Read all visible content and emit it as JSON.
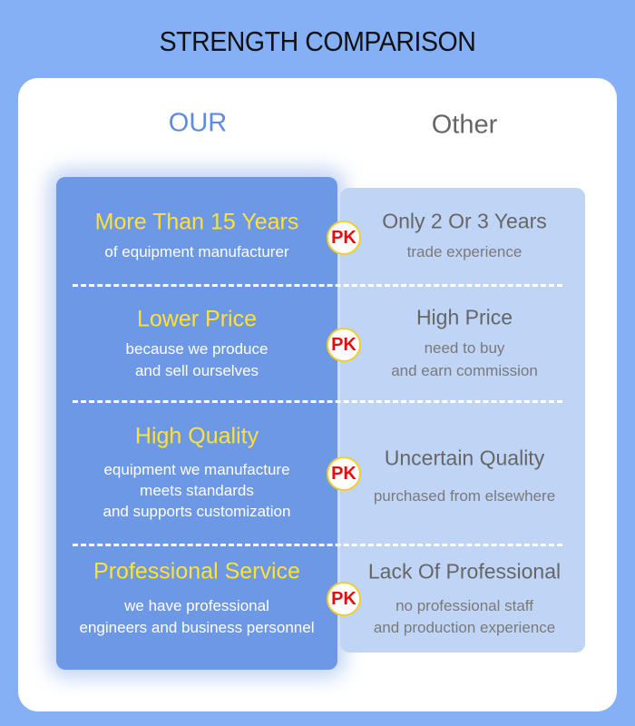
{
  "header": {
    "title": "STRENGTH COMPARISON"
  },
  "columns": {
    "our": "OUR",
    "other": "Other"
  },
  "rows": [
    {
      "our": {
        "title": "More Than 15 Years",
        "lines": [
          "of equipment manufacturer"
        ]
      },
      "badge": "PK",
      "other": {
        "title": "Only 2 Or 3 Years",
        "lines": [
          "trade experience"
        ]
      }
    },
    {
      "our": {
        "title": "Lower Price",
        "lines": [
          "because we produce",
          "and sell ourselves"
        ]
      },
      "badge": "PK",
      "other": {
        "title": "High Price",
        "lines": [
          "need to buy",
          "and earn commission"
        ]
      }
    },
    {
      "our": {
        "title": "High Quality",
        "lines": [
          "equipment we manufacture",
          "meets standards",
          "and supports customization"
        ]
      },
      "badge": "PK",
      "other": {
        "title": "Uncertain Quality",
        "lines": [
          "purchased from elsewhere"
        ]
      }
    },
    {
      "our": {
        "title": "Professional Service",
        "lines": [
          "we have professional",
          "engineers and business personnel"
        ]
      },
      "badge": "PK",
      "other": {
        "title": "Lack Of Professional",
        "lines": [
          "no professional staff",
          "and production experience"
        ]
      }
    }
  ]
}
